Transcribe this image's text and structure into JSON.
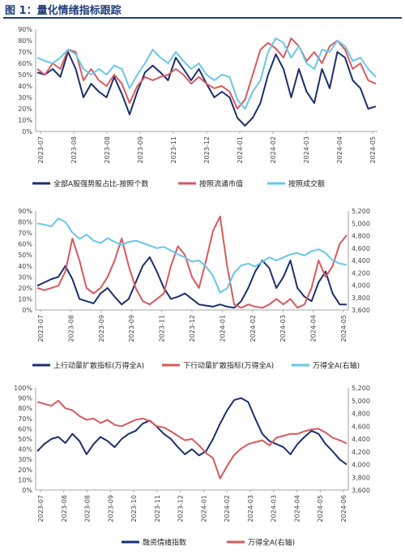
{
  "figure_title": "图 1：量化情绪指标跟踪",
  "colors": {
    "navy": "#1c2f6e",
    "red": "#d9595c",
    "cyan": "#67c7e8",
    "title": "#1f3d7a"
  },
  "chart_data": [
    {
      "type": "line",
      "x_ticks": [
        "2023-07",
        "2023-08",
        "2023-08",
        "2023-09",
        "2023-11",
        "2023-12",
        "2024-01",
        "2024-02",
        "2024-03",
        "2024-04",
        "2024-05"
      ],
      "y_left_ticks": [
        "0%",
        "10%",
        "20%",
        "30%",
        "40%",
        "50%",
        "60%",
        "70%",
        "80%",
        "90%"
      ],
      "ylim": [
        0,
        0.9
      ],
      "grid": false,
      "legend": "bottom",
      "series": [
        {
          "name": "全部A股强势股占比-按照个数",
          "color": "#1c2f6e",
          "axis": "left",
          "values": [
            0.52,
            0.5,
            0.55,
            0.48,
            0.7,
            0.55,
            0.3,
            0.42,
            0.35,
            0.3,
            0.48,
            0.33,
            0.15,
            0.35,
            0.52,
            0.58,
            0.52,
            0.45,
            0.65,
            0.55,
            0.45,
            0.55,
            0.42,
            0.3,
            0.35,
            0.3,
            0.12,
            0.05,
            0.12,
            0.25,
            0.5,
            0.68,
            0.55,
            0.3,
            0.55,
            0.35,
            0.25,
            0.55,
            0.38,
            0.7,
            0.65,
            0.45,
            0.38,
            0.2,
            0.22
          ]
        },
        {
          "name": "按照流通市值",
          "color": "#d9595c",
          "axis": "left",
          "values": [
            0.55,
            0.5,
            0.6,
            0.55,
            0.72,
            0.7,
            0.45,
            0.55,
            0.45,
            0.4,
            0.5,
            0.42,
            0.25,
            0.4,
            0.48,
            0.45,
            0.48,
            0.5,
            0.55,
            0.5,
            0.42,
            0.48,
            0.42,
            0.38,
            0.4,
            0.35,
            0.2,
            0.28,
            0.5,
            0.72,
            0.78,
            0.73,
            0.65,
            0.82,
            0.75,
            0.62,
            0.7,
            0.6,
            0.75,
            0.8,
            0.72,
            0.55,
            0.6,
            0.45,
            0.42
          ]
        },
        {
          "name": "按照成交额",
          "color": "#67c7e8",
          "axis": "left",
          "values": [
            0.65,
            0.62,
            0.6,
            0.65,
            0.72,
            0.68,
            0.55,
            0.5,
            0.55,
            0.5,
            0.58,
            0.55,
            0.38,
            0.5,
            0.6,
            0.72,
            0.65,
            0.6,
            0.7,
            0.62,
            0.55,
            0.6,
            0.5,
            0.45,
            0.5,
            0.48,
            0.28,
            0.2,
            0.35,
            0.45,
            0.7,
            0.82,
            0.78,
            0.65,
            0.75,
            0.6,
            0.55,
            0.72,
            0.7,
            0.8,
            0.75,
            0.62,
            0.65,
            0.55,
            0.48
          ]
        }
      ]
    },
    {
      "type": "line",
      "x_ticks": [
        "2023-07",
        "2023-08",
        "2023-09",
        "2023-09",
        "2023-11",
        "2023-12",
        "2024-01",
        "2024-02",
        "2024-03",
        "2024-04",
        "2024-05"
      ],
      "y_left_ticks": [
        "0%",
        "10%",
        "20%",
        "30%",
        "40%",
        "50%",
        "60%",
        "70%",
        "80%",
        "90%"
      ],
      "y_right_ticks": [
        "3,600",
        "3,800",
        "4,000",
        "4,200",
        "4,400",
        "4,600",
        "4,800",
        "5,000",
        "5,200"
      ],
      "ylim": [
        0,
        0.9
      ],
      "y2lim": [
        3600,
        5200
      ],
      "grid": false,
      "legend": "bottom",
      "series": [
        {
          "name": "上行动量扩散指标(万得全A)",
          "color": "#1c2f6e",
          "axis": "left",
          "values": [
            0.22,
            0.25,
            0.28,
            0.3,
            0.4,
            0.28,
            0.1,
            0.08,
            0.06,
            0.15,
            0.2,
            0.12,
            0.05,
            0.1,
            0.25,
            0.4,
            0.48,
            0.35,
            0.2,
            0.1,
            0.12,
            0.15,
            0.1,
            0.05,
            0.04,
            0.03,
            0.05,
            0.03,
            0.02,
            0.08,
            0.2,
            0.35,
            0.45,
            0.38,
            0.2,
            0.3,
            0.45,
            0.2,
            0.12,
            0.08,
            0.25,
            0.35,
            0.15,
            0.05,
            0.05
          ]
        },
        {
          "name": "下行动量扩散指标(万得全A)",
          "color": "#d9595c",
          "axis": "left",
          "values": [
            0.2,
            0.18,
            0.2,
            0.22,
            0.35,
            0.65,
            0.45,
            0.2,
            0.15,
            0.2,
            0.3,
            0.45,
            0.65,
            0.4,
            0.2,
            0.08,
            0.05,
            0.1,
            0.15,
            0.4,
            0.58,
            0.5,
            0.3,
            0.2,
            0.45,
            0.72,
            0.85,
            0.4,
            0.05,
            0.02,
            0.05,
            0.03,
            0.02,
            0.05,
            0.1,
            0.05,
            0.1,
            0.02,
            0.05,
            0.2,
            0.45,
            0.3,
            0.4,
            0.6,
            0.68
          ]
        },
        {
          "name": "万得全A(右轴)",
          "color": "#67c7e8",
          "axis": "right",
          "values": [
            5000,
            4980,
            4950,
            5080,
            5020,
            4850,
            4750,
            4820,
            4720,
            4680,
            4760,
            4700,
            4650,
            4700,
            4720,
            4680,
            4640,
            4600,
            4620,
            4560,
            4500,
            4450,
            4380,
            4400,
            4300,
            4150,
            3880,
            3950,
            4200,
            4320,
            4350,
            4300,
            4380,
            4450,
            4400,
            4450,
            4500,
            4520,
            4480,
            4550,
            4580,
            4520,
            4400,
            4350,
            4330
          ]
        }
      ]
    },
    {
      "type": "line",
      "x_ticks": [
        "2023-07",
        "2023-08",
        "2023-08",
        "2023-09",
        "2023-10",
        "2023-11",
        "2023-12",
        "2024-01",
        "2024-02",
        "2024-03",
        "2024-03",
        "2024-04",
        "2024-05",
        "2024-06"
      ],
      "y_left_ticks": [
        "0%",
        "10%",
        "20%",
        "30%",
        "40%",
        "50%",
        "60%",
        "70%",
        "80%",
        "90%",
        "100%"
      ],
      "y_right_ticks": [
        "3,600",
        "3,800",
        "4,000",
        "4,200",
        "4,400",
        "4,600",
        "4,800",
        "5,000",
        "5,200"
      ],
      "ylim": [
        0,
        1
      ],
      "y2lim": [
        3600,
        5200
      ],
      "grid": false,
      "legend": "bottom",
      "series": [
        {
          "name": "融资情绪指数",
          "color": "#1c2f6e",
          "axis": "left",
          "values": [
            0.38,
            0.45,
            0.5,
            0.52,
            0.46,
            0.55,
            0.48,
            0.35,
            0.45,
            0.52,
            0.48,
            0.42,
            0.5,
            0.55,
            0.58,
            0.65,
            0.68,
            0.62,
            0.55,
            0.5,
            0.42,
            0.35,
            0.4,
            0.34,
            0.38,
            0.5,
            0.65,
            0.78,
            0.88,
            0.9,
            0.86,
            0.7,
            0.55,
            0.48,
            0.45,
            0.42,
            0.35,
            0.45,
            0.52,
            0.58,
            0.55,
            0.45,
            0.38,
            0.3,
            0.25
          ]
        },
        {
          "name": "万得全A(右轴)",
          "color": "#d9595c",
          "axis": "right",
          "values": [
            4980,
            4950,
            4920,
            5000,
            4880,
            4850,
            4760,
            4700,
            4720,
            4650,
            4700,
            4620,
            4600,
            4650,
            4700,
            4720,
            4680,
            4600,
            4580,
            4520,
            4450,
            4380,
            4400,
            4300,
            4180,
            4100,
            3780,
            3980,
            4150,
            4250,
            4320,
            4350,
            4380,
            4300,
            4420,
            4450,
            4480,
            4480,
            4520,
            4550,
            4560,
            4500,
            4420,
            4380,
            4330
          ]
        }
      ]
    }
  ]
}
